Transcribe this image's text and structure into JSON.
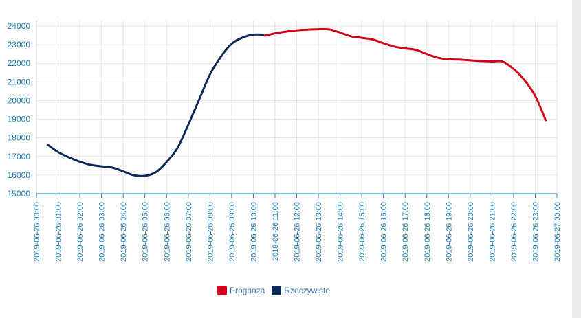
{
  "chart_data": {
    "type": "line",
    "title": "",
    "xlabel": "",
    "ylabel": "",
    "ylim": [
      15000,
      24000
    ],
    "y_ticks": [
      "24000",
      "23000",
      "22000",
      "21000",
      "20000",
      "19000",
      "18000",
      "17000",
      "16000",
      "15000"
    ],
    "x_ticks": [
      "2019-06-26 00:00",
      "2019-06-26 01:00",
      "2019-06-26 02:00",
      "2019-06-26 03:00",
      "2019-06-26 04:00",
      "2019-06-26 05:00",
      "2019-06-26 06:00",
      "2019-06-26 07:00",
      "2019-06-26 08:00",
      "2019-06-26 09:00",
      "2019-06-26 10:00",
      "2019-06-26 11:00",
      "2019-06-26 12:00",
      "2019-06-26 13:00",
      "2019-06-26 14:00",
      "2019-06-26 15:00",
      "2019-06-26 16:00",
      "2019-06-26 17:00",
      "2019-06-26 18:00",
      "2019-06-26 19:00",
      "2019-06-26 20:00",
      "2019-06-26 21:00",
      "2019-06-26 22:00",
      "2019-06-26 23:00",
      "2019-06-27 00:00"
    ],
    "grid": true,
    "legend_position": "bottom-center",
    "series": [
      {
        "name": "Prognoza",
        "color": "#d0021b",
        "x": [
          "2019-06-26 10:30",
          "2019-06-26 11:00",
          "2019-06-26 11:30",
          "2019-06-26 12:00",
          "2019-06-26 12:30",
          "2019-06-26 13:00",
          "2019-06-26 13:30",
          "2019-06-26 14:00",
          "2019-06-26 14:30",
          "2019-06-26 15:00",
          "2019-06-26 15:30",
          "2019-06-26 16:00",
          "2019-06-26 16:30",
          "2019-06-26 17:00",
          "2019-06-26 17:30",
          "2019-06-26 18:00",
          "2019-06-26 18:30",
          "2019-06-26 19:00",
          "2019-06-26 19:30",
          "2019-06-26 20:00",
          "2019-06-26 20:30",
          "2019-06-26 21:00",
          "2019-06-26 21:30",
          "2019-06-26 22:00",
          "2019-06-26 22:30",
          "2019-06-26 23:00",
          "2019-06-26 23:30"
        ],
        "values": [
          23480,
          23610,
          23700,
          23770,
          23810,
          23830,
          23820,
          23650,
          23450,
          23370,
          23280,
          23080,
          22900,
          22800,
          22720,
          22500,
          22300,
          22220,
          22200,
          22160,
          22120,
          22100,
          22090,
          21700,
          21100,
          20250,
          18900
        ]
      },
      {
        "name": "Rzeczywiste",
        "color": "#0b2a57",
        "x": [
          "2019-06-26 00:30",
          "2019-06-26 01:00",
          "2019-06-26 01:30",
          "2019-06-26 02:00",
          "2019-06-26 02:30",
          "2019-06-26 03:00",
          "2019-06-26 03:30",
          "2019-06-26 04:00",
          "2019-06-26 04:30",
          "2019-06-26 05:00",
          "2019-06-26 05:30",
          "2019-06-26 06:00",
          "2019-06-26 06:30",
          "2019-06-26 07:00",
          "2019-06-26 07:30",
          "2019-06-26 08:00",
          "2019-06-26 08:30",
          "2019-06-26 09:00",
          "2019-06-26 09:30",
          "2019-06-26 10:00",
          "2019-06-26 10:30"
        ],
        "values": [
          17650,
          17230,
          16950,
          16720,
          16550,
          16470,
          16400,
          16200,
          15990,
          15960,
          16150,
          16700,
          17450,
          18700,
          20050,
          21400,
          22350,
          23050,
          23380,
          23540,
          23530
        ]
      }
    ]
  }
}
